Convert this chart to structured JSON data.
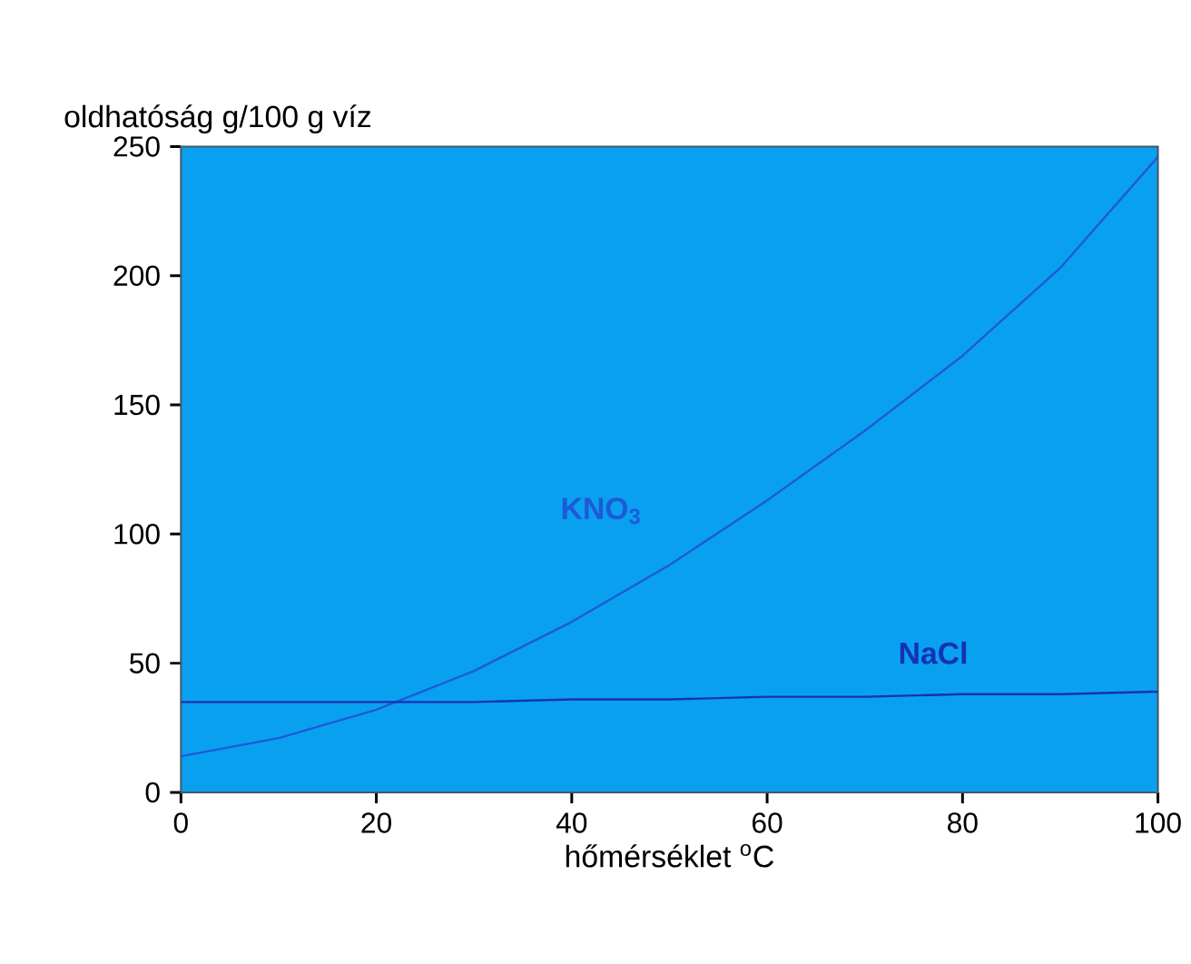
{
  "chart_data": {
    "type": "line",
    "ylabel": "oldhatóság g/100 g víz",
    "xlabel": "hőmérséklet $^{o}$C",
    "x": [
      0,
      10,
      20,
      30,
      40,
      50,
      60,
      70,
      80,
      90,
      100
    ],
    "series": [
      {
        "name": "KNO$_{3}$",
        "color": "#1e5ad8",
        "values": [
          14,
          21,
          32,
          47,
          66,
          88,
          113,
          140,
          169,
          203,
          246
        ]
      },
      {
        "name": "NaCl",
        "color": "#1432b4",
        "values": [
          35,
          35,
          35,
          35,
          36,
          36,
          37,
          37,
          38,
          38,
          39
        ]
      }
    ],
    "xlim": [
      0,
      100
    ],
    "ylim": [
      0,
      250
    ],
    "xticks": [
      0,
      20,
      40,
      60,
      80,
      100
    ],
    "yticks": [
      0,
      50,
      100,
      150,
      200,
      250
    ],
    "grid": false,
    "legend": false,
    "marker": "none",
    "line_style": "solid"
  }
}
